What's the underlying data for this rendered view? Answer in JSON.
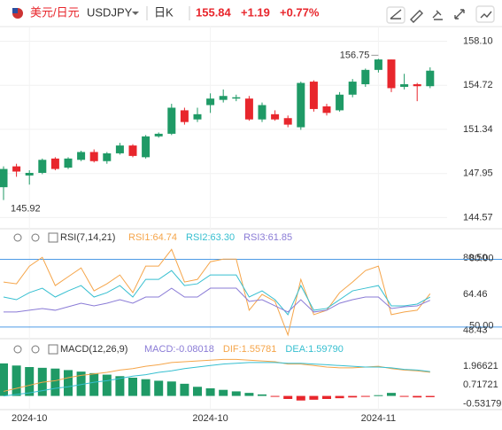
{
  "header": {
    "symbol_name": "美元/日元",
    "code": "USDJPY",
    "period": "日K",
    "price": "155.84",
    "change": "+1.19",
    "change_pct": "+0.77%"
  },
  "chart_data": [
    {
      "type": "candlestick",
      "categories": [
        null,
        null,
        "2024-10",
        null,
        null,
        null,
        null,
        null,
        null,
        null,
        null,
        null,
        null,
        null,
        null,
        null,
        "2024-10",
        null,
        null,
        null,
        null,
        null,
        null,
        null,
        null,
        null,
        null,
        null,
        null,
        "2024-11",
        null,
        null,
        null,
        null
      ],
      "open": [
        146.9,
        148.5,
        147.8,
        148.0,
        149.1,
        148.4,
        149.0,
        149.6,
        148.9,
        149.5,
        150.1,
        149.2,
        150.8,
        151.0,
        152.8,
        152.1,
        153.2,
        153.6,
        153.7,
        153.7,
        152.1,
        152.5,
        152.2,
        151.5,
        155.0,
        153.1,
        152.8,
        154.0,
        154.8,
        155.9,
        156.7,
        154.6,
        154.8,
        154.65
      ],
      "high": [
        148.5,
        148.7,
        148.2,
        149.1,
        149.2,
        149.2,
        149.7,
        149.8,
        149.6,
        150.3,
        150.2,
        150.9,
        151.1,
        153.3,
        153.0,
        153.0,
        154.1,
        154.4,
        154.0,
        153.9,
        153.4,
        152.8,
        152.4,
        155.0,
        155.1,
        153.3,
        154.2,
        155.2,
        156.0,
        156.75,
        156.7,
        155.6,
        154.9,
        156.1
      ],
      "low": [
        145.92,
        147.7,
        147.1,
        147.9,
        148.2,
        148.3,
        148.9,
        148.8,
        148.7,
        149.4,
        149.2,
        149.1,
        150.7,
        150.9,
        151.7,
        151.9,
        152.6,
        153.4,
        153.5,
        152.0,
        151.9,
        152.0,
        151.5,
        151.3,
        152.7,
        152.4,
        152.7,
        153.8,
        154.6,
        155.7,
        154.2,
        154.4,
        153.5,
        154.5
      ],
      "close": [
        148.3,
        148.1,
        148.0,
        149.0,
        148.3,
        149.1,
        149.6,
        148.9,
        149.5,
        150.1,
        149.3,
        150.8,
        151.0,
        153.0,
        151.9,
        152.5,
        153.7,
        153.9,
        153.8,
        152.1,
        153.2,
        152.1,
        151.7,
        154.9,
        152.9,
        152.6,
        154.0,
        155.0,
        155.9,
        156.7,
        154.5,
        154.8,
        154.65,
        155.84
      ],
      "up_color": "#1f9a66",
      "down_color": "#e8262c",
      "ylim": [
        143.85,
        158.95
      ],
      "yticks": [
        {
          "value": 158.1,
          "label": "158.10"
        },
        154.72,
        151.34,
        147.95,
        144.57
      ],
      "grid": true
    },
    {
      "type": "line",
      "title": "RSI(7,14,21)",
      "series": [
        {
          "name": "RSI1:64.74",
          "color": "#f5a54a",
          "values": [
            69.95,
            69.17,
            76.99,
            80.9,
            68.38,
            72.3,
            76.21,
            66.04,
            69.17,
            73.08,
            65.25,
            76.99,
            76.99,
            84.42,
            69.95,
            71.12,
            78.95,
            80.12,
            80.12,
            57.43,
            64.47,
            61.34,
            46.47,
            71.12,
            55.47,
            57.43,
            65.25,
            69.95,
            75.03,
            76.99,
            55.47,
            56.65,
            57.43,
            64.74
          ]
        },
        {
          "name": "RSI2:63.30",
          "color": "#36bfd0",
          "values": [
            63.3,
            62.12,
            65.25,
            67.21,
            63.3,
            66.03,
            68.38,
            63.3,
            65.25,
            68.38,
            63.3,
            71.12,
            71.12,
            75.03,
            68.38,
            69.17,
            73.08,
            73.08,
            73.08,
            63.3,
            66.03,
            62.12,
            55.47,
            68.38,
            57.43,
            58.21,
            62.12,
            66.03,
            67.21,
            68.38,
            59.38,
            59.38,
            60.17,
            63.3
          ]
        },
        {
          "name": "RSI3:61.85",
          "color": "#8a7bd6",
          "values": [
            56.65,
            56.65,
            57.43,
            58.21,
            57.43,
            58.99,
            60.56,
            59.38,
            60.56,
            62.12,
            60.56,
            63.3,
            63.3,
            67.21,
            63.3,
            63.3,
            67.21,
            67.21,
            67.21,
            61.34,
            62.12,
            59.38,
            56.65,
            62.12,
            56.65,
            57.43,
            60.56,
            62.12,
            63.3,
            63.3,
            58.21,
            58.99,
            59.38,
            61.85
          ]
        }
      ],
      "ylim": [
        46,
        86.5
      ],
      "yticks": [
        {
          "value": 80.5,
          "label": "80.50"
        },
        64.46,
        48.43
      ],
      "ref_lines": [
        {
          "value": 80,
          "label": "80.00"
        },
        {
          "value": 50,
          "label": "50.00"
        }
      ],
      "ref_color": "#4d9be6"
    },
    {
      "type": "combo",
      "title": "MACD(12,26,9)",
      "series": [
        {
          "name": "MACD:-0.08018",
          "color": "#8a7bd6",
          "type": "bar",
          "up_color": "#1f9a66",
          "down_color": "#e8262c",
          "values": [
            2.14,
            2.0,
            1.9,
            1.85,
            1.8,
            1.7,
            1.6,
            1.5,
            1.4,
            1.3,
            1.2,
            1.1,
            1.0,
            0.95,
            0.8,
            0.6,
            0.5,
            0.4,
            0.3,
            0.2,
            0.1,
            -0.05,
            -0.2,
            -0.3,
            -0.25,
            -0.2,
            -0.15,
            -0.1,
            -0.05,
            0.05,
            0.2,
            -0.05,
            -0.1,
            -0.08018
          ]
        },
        {
          "name": "DIF:1.55781",
          "color": "#f5a54a",
          "type": "line",
          "values": [
            0.3,
            0.5,
            0.7,
            0.9,
            1.0,
            1.2,
            1.35,
            1.45,
            1.55,
            1.7,
            1.8,
            1.95,
            2.05,
            2.2,
            2.25,
            2.3,
            2.35,
            2.4,
            2.4,
            2.35,
            2.3,
            2.25,
            2.1,
            2.1,
            2.0,
            1.9,
            1.85,
            1.85,
            1.9,
            1.95,
            1.8,
            1.7,
            1.65,
            1.55781
          ]
        },
        {
          "name": "DEA:1.59790",
          "color": "#36bfd0",
          "type": "line",
          "values": [
            0.0,
            0.1,
            0.2,
            0.35,
            0.5,
            0.6,
            0.75,
            0.9,
            1.0,
            1.15,
            1.3,
            1.4,
            1.55,
            1.65,
            1.8,
            1.9,
            2.0,
            2.1,
            2.15,
            2.2,
            2.2,
            2.2,
            2.15,
            2.15,
            2.1,
            2.05,
            2.0,
            1.95,
            1.9,
            1.9,
            1.85,
            1.75,
            1.7,
            1.5979
          ]
        }
      ],
      "ylim": [
        -0.9,
        3.3
      ],
      "yticks": [
        1.96621,
        0.71721,
        -0.53179
      ]
    }
  ]
}
